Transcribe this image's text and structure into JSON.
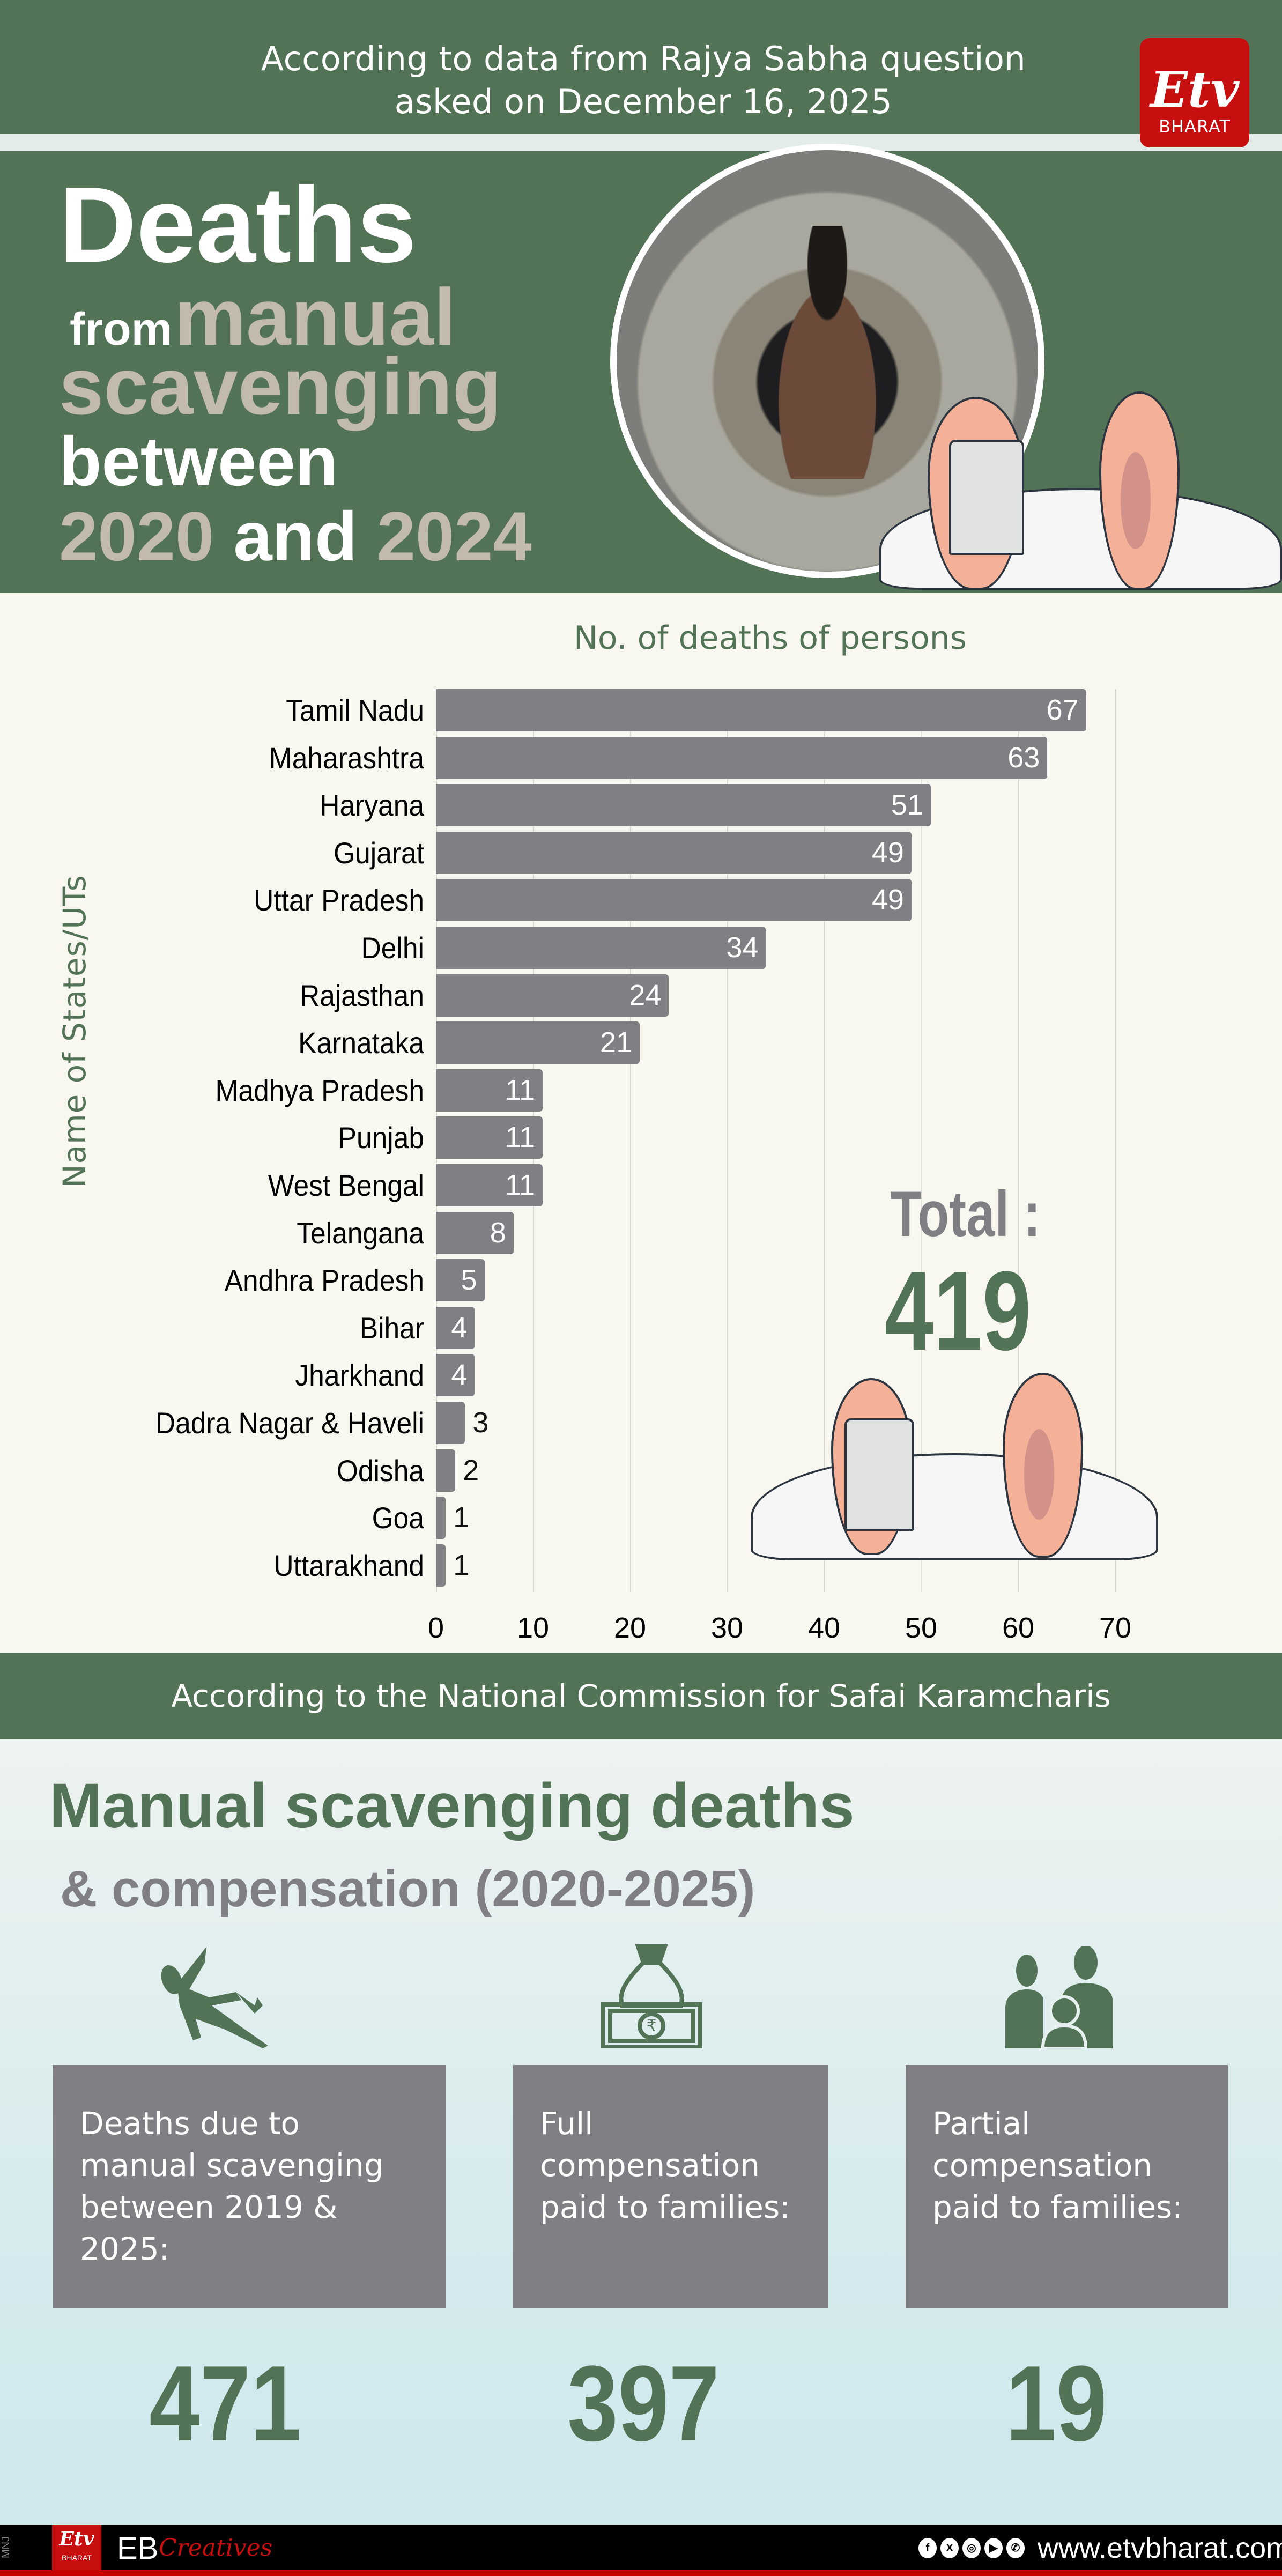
{
  "header": {
    "source_line1": "According to data from Rajya Sabha question",
    "source_line2": "asked on December 16, 2025",
    "logo_mark": "Etv",
    "logo_text": "BHARAT"
  },
  "hero": {
    "line1": "Deaths",
    "line2_small": "from",
    "line2_large": "manual",
    "line3": "scavenging",
    "line4": "between",
    "line5_year1": "2020",
    "line5_and": "and",
    "line5_year2": "2024"
  },
  "chart_data": {
    "type": "bar",
    "orientation": "horizontal",
    "title": "No. of deaths of persons",
    "xlabel": "No. of deaths of persons",
    "ylabel": "Name of States/UTs",
    "categories": [
      "Tamil Nadu",
      "Maharashtra",
      "Haryana",
      "Gujarat",
      "Uttar Pradesh",
      "Delhi",
      "Rajasthan",
      "Karnataka",
      "Madhya Pradesh",
      "Punjab",
      "West Bengal",
      "Telangana",
      "Andhra Pradesh",
      "Bihar",
      "Jharkhand",
      "Dadra Nagar & Haveli",
      "Odisha",
      "Goa",
      "Uttarakhand"
    ],
    "values": [
      67,
      63,
      51,
      49,
      49,
      34,
      24,
      21,
      11,
      11,
      11,
      8,
      5,
      4,
      4,
      3,
      2,
      1,
      1
    ],
    "xlim": [
      0,
      70
    ],
    "xticks": [
      0,
      10,
      20,
      30,
      40,
      50,
      60,
      70
    ],
    "grid": true,
    "bar_color": "#807f84",
    "annotation": {
      "label": "Total :",
      "value": "419"
    }
  },
  "mid_band": {
    "text": "According to the National Commission for Safai Karamcharis"
  },
  "compensation": {
    "title": "Manual scavenging deaths",
    "subtitle": "& compensation (2020-2025)",
    "cards": [
      {
        "icon": "falling-person-icon",
        "label": "Deaths due to manual scavenging between 2019 & 2025:",
        "value": "471"
      },
      {
        "icon": "money-bag-rupee-icon",
        "label": "Full compensation paid to families:",
        "value": "397"
      },
      {
        "icon": "family-icon",
        "label": "Partial compensation paid to families:",
        "value": "19"
      }
    ]
  },
  "footer": {
    "initials": "MNJ",
    "logo_mark": "Etv",
    "logo_text": "BHARAT",
    "brand_eb": "EB",
    "brand_creatives": "Creatives",
    "social": [
      "f",
      "X",
      "◎",
      "▶",
      "✆"
    ],
    "website": "www.etvbharat.com"
  },
  "colors": {
    "green": "#527356",
    "tan": "#c2bbab",
    "bar_gray": "#807f84",
    "cream": "#f8f7f0",
    "brand_red": "#c80f10"
  }
}
